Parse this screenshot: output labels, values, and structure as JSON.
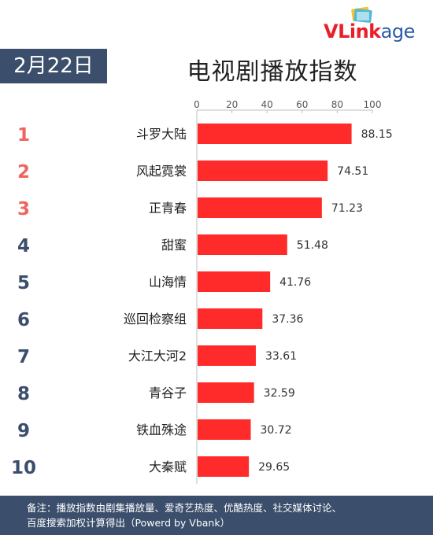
{
  "brand": {
    "logo_text_red": "VLink",
    "logo_text_blue": "age"
  },
  "header": {
    "date": "2月22日",
    "title": "电视剧播放指数"
  },
  "footer": {
    "line1": "备注：播放指数由剧集播放量、爱奇艺热度、优酷热度、社交媒体讨论、",
    "line2": "百度搜索加权计算得出（Powerd by Vbank）"
  },
  "chart_data": {
    "type": "bar",
    "orientation": "horizontal",
    "ranks": [
      "1",
      "2",
      "3",
      "4",
      "5",
      "6",
      "7",
      "8",
      "9",
      "10"
    ],
    "categories": [
      "斗罗大陆",
      "风起霓裳",
      "正青春",
      "甜蜜",
      "山海情",
      "巡回检察组",
      "大江大河2",
      "青谷子",
      "铁血殊途",
      "大秦赋"
    ],
    "values": [
      88.15,
      74.51,
      71.23,
      51.48,
      41.76,
      37.36,
      33.61,
      32.59,
      30.72,
      29.65
    ],
    "value_labels": [
      "88.15",
      "74.51",
      "71.23",
      "51.48",
      "41.76",
      "37.36",
      "33.61",
      "32.59",
      "30.72",
      "29.65"
    ],
    "xlim": [
      0,
      100
    ],
    "xticks": [
      0,
      20,
      40,
      60,
      80,
      100
    ],
    "axis_position": "top",
    "grid": false,
    "colors": {
      "bar": "#ff2a2a",
      "rank_top3": "#f0645f",
      "rank_rest": "#3b4e6b"
    }
  }
}
